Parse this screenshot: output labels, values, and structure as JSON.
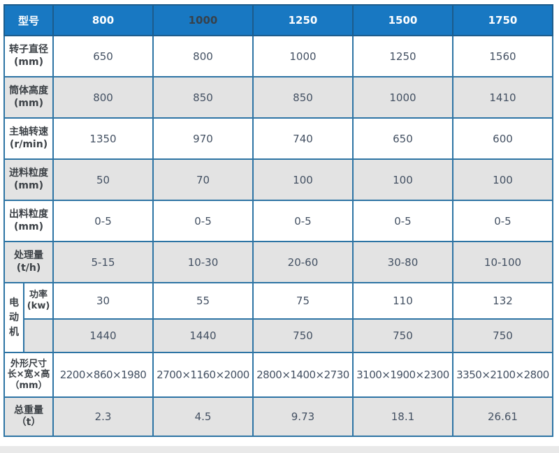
{
  "colors": {
    "header_bg": "#1878c2",
    "header_text": "#ffffff",
    "header_text_alt": "#37414b",
    "border": "#2d74a4",
    "border_dark": "#1c5c8c",
    "shade_bg": "#e3e3e3",
    "label_text": "#3c4146",
    "value_text": "#435062",
    "page_strip": "#e9e9e9"
  },
  "table": {
    "header": {
      "label": "型号",
      "models": [
        "800",
        "1000",
        "1250",
        "1500",
        "1750"
      ]
    },
    "rows": [
      {
        "label": "转子直径",
        "unit": "(mm)",
        "values": [
          "650",
          "800",
          "1000",
          "1250",
          "1560"
        ]
      },
      {
        "label": "筒体高度",
        "unit": "(mm)",
        "values": [
          "800",
          "850",
          "850",
          "1000",
          "1410"
        ]
      },
      {
        "label": "主轴转速",
        "unit": "(r/min)",
        "values": [
          "1350",
          "970",
          "740",
          "650",
          "600"
        ]
      },
      {
        "label": "进料粒度",
        "unit": "(mm)",
        "values": [
          "50",
          "70",
          "100",
          "100",
          "100"
        ]
      },
      {
        "label": "出料粒度",
        "unit": "(mm)",
        "values": [
          "0-5",
          "0-5",
          "0-5",
          "0-5",
          "0-5"
        ]
      },
      {
        "label": "处理量",
        "unit": "(t/h)",
        "values": [
          "5-15",
          "10-30",
          "20-60",
          "30-80",
          "10-100"
        ]
      }
    ],
    "motor": {
      "group_label": "电动机",
      "power": {
        "label": "功率",
        "unit": "(kw)",
        "values": [
          "30",
          "55",
          "75",
          "110",
          "132"
        ]
      },
      "speed": {
        "label": "",
        "values": [
          "1440",
          "1440",
          "750",
          "750",
          "750"
        ]
      }
    },
    "dimensions": {
      "label_line1": "外形尺寸",
      "label_line2": "长×宽×高",
      "unit": "（mm）",
      "values": [
        "2200×860×1980",
        "2700×1160×2000",
        "2800×1400×2730",
        "3100×1900×2300",
        "3350×2100×2800"
      ]
    },
    "weight": {
      "label": "总重量",
      "unit": "（t）",
      "values": [
        "2.3",
        "4.5",
        "9.73",
        "18.1",
        "26.61"
      ]
    }
  },
  "chart_data": {
    "type": "table",
    "columns": [
      "型号",
      "800",
      "1000",
      "1250",
      "1500",
      "1750"
    ],
    "rows": [
      [
        "转子直径(mm)",
        "650",
        "800",
        "1000",
        "1250",
        "1560"
      ],
      [
        "筒体高度(mm)",
        "800",
        "850",
        "850",
        "1000",
        "1410"
      ],
      [
        "主轴转速(r/min)",
        "1350",
        "970",
        "740",
        "650",
        "600"
      ],
      [
        "进料粒度(mm)",
        "50",
        "70",
        "100",
        "100",
        "100"
      ],
      [
        "出料粒度(mm)",
        "0-5",
        "0-5",
        "0-5",
        "0-5",
        "0-5"
      ],
      [
        "处理量(t/h)",
        "5-15",
        "10-30",
        "20-60",
        "30-80",
        "10-100"
      ],
      [
        "电动机 功率(kw)",
        "30",
        "55",
        "75",
        "110",
        "132"
      ],
      [
        "电动机",
        "1440",
        "1440",
        "750",
        "750",
        "750"
      ],
      [
        "外形尺寸 长×宽×高（mm）",
        "2200×860×1980",
        "2700×1160×2000",
        "2800×1400×2730",
        "3100×1900×2300",
        "3350×2100×2800"
      ],
      [
        "总重量（t）",
        "2.3",
        "4.5",
        "9.73",
        "18.1",
        "26.61"
      ]
    ]
  }
}
